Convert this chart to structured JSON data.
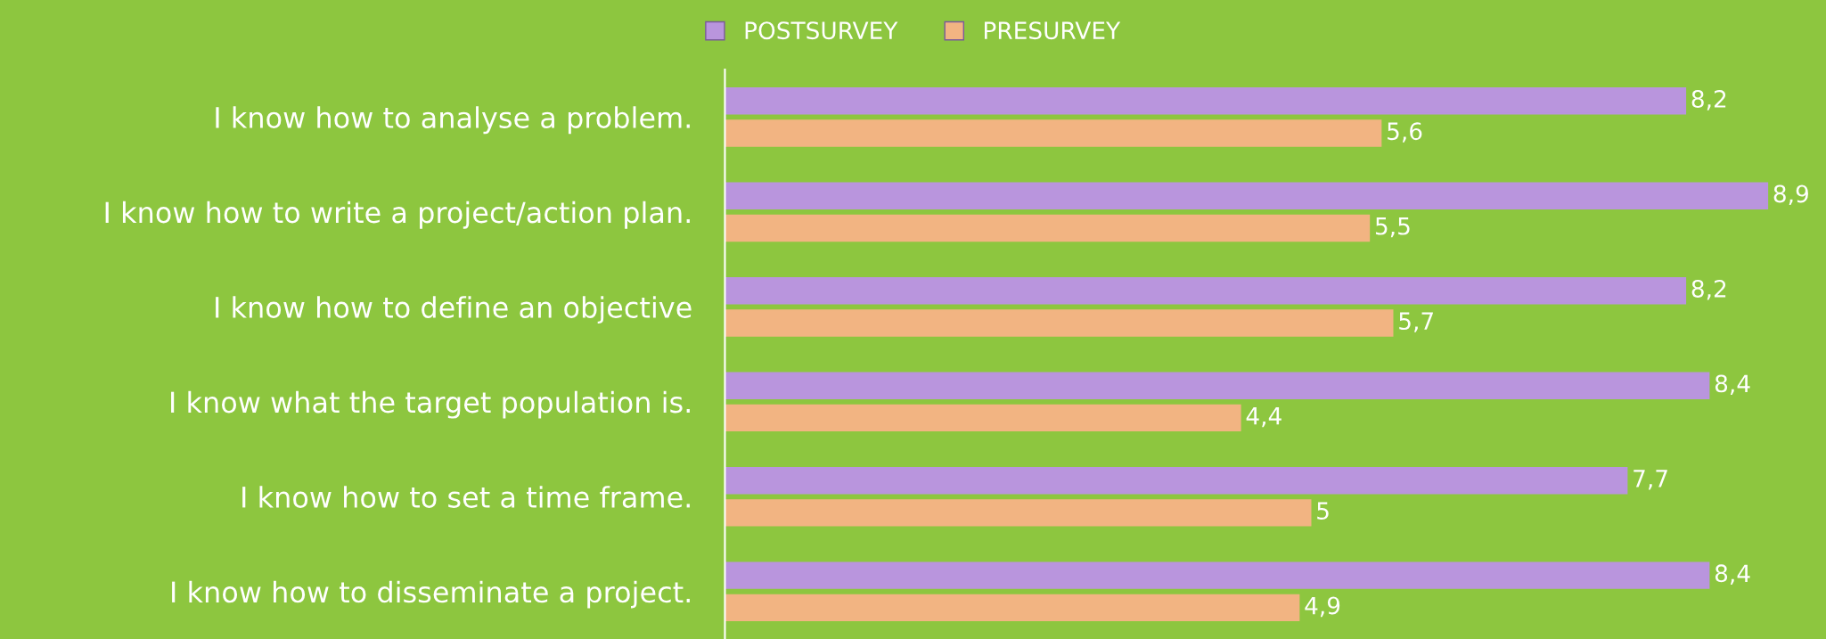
{
  "chart_data": {
    "type": "bar",
    "orientation": "horizontal",
    "categories": [
      "I know how to analyse a problem.",
      "I know how to write a project/action plan.",
      "I know how to define an objective",
      "I know what the target population is.",
      "I know how to set a time frame.",
      "I know how to disseminate a project."
    ],
    "series": [
      {
        "name": "POSTSURVEY",
        "color": "#b995dd",
        "values": [
          8.2,
          8.9,
          8.2,
          8.4,
          7.7,
          8.4
        ],
        "value_labels": [
          "8,2",
          "8,9",
          "8,2",
          "8,4",
          "7,7",
          "8,4"
        ]
      },
      {
        "name": "PRESURVEY",
        "color": "#f2b482",
        "values": [
          5.6,
          5.5,
          5.7,
          4.4,
          5,
          4.9
        ],
        "value_labels": [
          "5,6",
          "5,5",
          "5,7",
          "4,4",
          "5",
          "4,9"
        ]
      }
    ],
    "xlim": [
      0,
      9.4
    ],
    "tick_labels": "y",
    "legend": "top",
    "grid": false
  }
}
